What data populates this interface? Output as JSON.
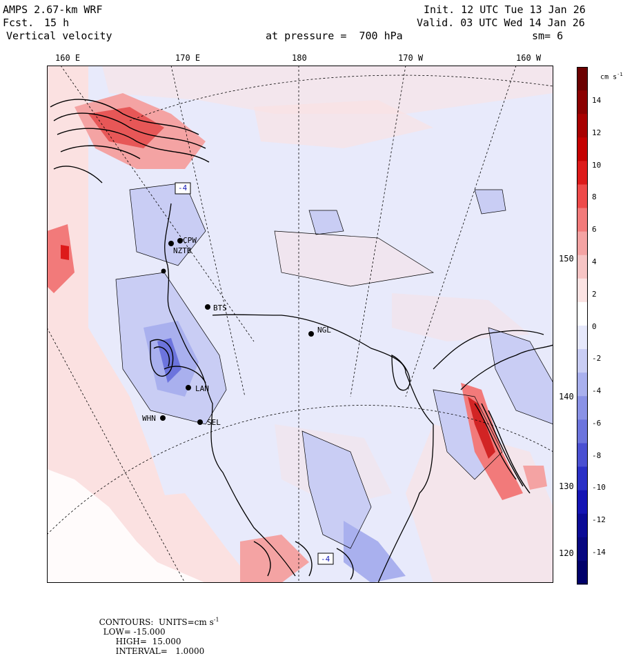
{
  "header": {
    "model": "AMPS 2.67-km WRF",
    "forecast_label": "Fcst.",
    "forecast_hours": "15 h",
    "field": "Vertical velocity",
    "init": "Init. 12 UTC Tue 13 Jan 26",
    "valid": "Valid. 03 UTC Wed 14 Jan 26",
    "level": "at pressure =  700 hPa",
    "smoothing": "sm= 6"
  },
  "longitudes": [
    "160 E",
    "170 E",
    "180",
    "170 W",
    "160 W"
  ],
  "latitudes": [
    "150 W",
    "140 W",
    "130 W",
    "120 W"
  ],
  "stations": [
    "CPW",
    "NZTB",
    "BTS",
    "NGL",
    "LAN",
    "WHN",
    "SEL"
  ],
  "boxes": [
    "-4",
    "-4"
  ],
  "colorbar": {
    "units": "cm s",
    "units_exp": "-1",
    "ticks": [
      "14",
      "12",
      "10",
      "8",
      "6",
      "4",
      "2",
      "0",
      "-2",
      "-4",
      "-6",
      "-8",
      "-10",
      "-12",
      "-14"
    ],
    "colors": [
      "#6b0000",
      "#8b0000",
      "#a80000",
      "#c40000",
      "#dd1a1a",
      "#ee4a4a",
      "#f27a7a",
      "#f4a3a3",
      "#f6c4c4",
      "#fbe3e3",
      "#ffffff",
      "#e6e8fb",
      "#c9cdf4",
      "#a9b0ee",
      "#8a92e6",
      "#6c74dd",
      "#4a50d2",
      "#2a30c6",
      "#1414b4",
      "#0b0b96",
      "#070780",
      "#00006a"
    ]
  },
  "footer": {
    "contours": "CONTOURS:  UNITS=cm s",
    "exp": "-1",
    "low": "LOW= -15.000",
    "high": "HIGH=  15.000",
    "interval": "INTERVAL=   1.0000"
  }
}
